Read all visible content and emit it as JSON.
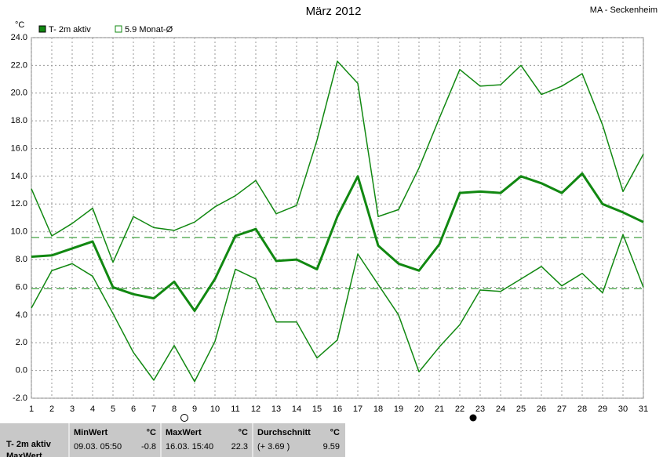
{
  "chart_data": {
    "type": "line",
    "title": "März 2012",
    "subtitle": "MA - Seckenheim",
    "y_unit": "°C",
    "x": [
      1,
      2,
      3,
      4,
      5,
      6,
      7,
      8,
      9,
      10,
      11,
      12,
      13,
      14,
      15,
      16,
      17,
      18,
      19,
      20,
      21,
      22,
      23,
      24,
      25,
      26,
      27,
      28,
      29,
      30,
      31
    ],
    "xlim": [
      1,
      31
    ],
    "xticks": [
      1,
      2,
      3,
      4,
      5,
      6,
      7,
      8,
      9,
      10,
      11,
      12,
      13,
      14,
      15,
      16,
      17,
      18,
      19,
      20,
      21,
      22,
      23,
      24,
      25,
      26,
      27,
      28,
      29,
      30,
      31
    ],
    "ylim": [
      -2,
      24
    ],
    "yticks": [
      {
        "value": 24,
        "label": "24.0"
      },
      {
        "value": 22,
        "label": "22.0"
      },
      {
        "value": 20,
        "label": "20.0"
      },
      {
        "value": 18,
        "label": "18.0"
      },
      {
        "value": 16,
        "label": "16.0"
      },
      {
        "value": 14,
        "label": "14.0"
      },
      {
        "value": 12,
        "label": "12.0"
      },
      {
        "value": 10,
        "label": "10.0"
      },
      {
        "value": 8,
        "label": "8.0"
      },
      {
        "value": 6,
        "label": "6.0"
      },
      {
        "value": 4,
        "label": "4.0"
      },
      {
        "value": 2,
        "label": "2.0"
      },
      {
        "value": 0,
        "label": "0.0"
      },
      {
        "value": -2,
        "label": "-2.0"
      }
    ],
    "grid": true,
    "series": [
      {
        "color": "#118811",
        "width": 1.5,
        "values": [
          13.1,
          9.7,
          10.6,
          11.7,
          7.8,
          11.1,
          10.3,
          10.1,
          10.7,
          11.8,
          12.6,
          13.7,
          11.3,
          11.9,
          16.6,
          22.3,
          20.7,
          11.1,
          11.6,
          14.6,
          18.2,
          21.7,
          20.5,
          20.6,
          22.0,
          19.9,
          20.5,
          21.4,
          17.7,
          12.9,
          15.6
        ]
      },
      {
        "name": "T- 2m aktiv",
        "color": "#118811",
        "width": 3,
        "values": [
          8.2,
          8.3,
          8.8,
          9.3,
          6.0,
          5.5,
          5.2,
          6.4,
          4.3,
          6.6,
          9.7,
          10.2,
          7.9,
          8.0,
          7.3,
          11.1,
          14.0,
          9.0,
          7.7,
          7.2,
          9.1,
          12.8,
          12.9,
          12.8,
          14.0,
          13.5,
          12.8,
          14.2,
          12.0,
          11.4,
          10.7
        ]
      },
      {
        "color": "#118811",
        "width": 1.5,
        "values": [
          4.5,
          7.2,
          7.7,
          6.8,
          4.1,
          1.3,
          -0.7,
          1.8,
          -0.8,
          2.1,
          7.3,
          6.6,
          3.5,
          3.5,
          0.9,
          2.2,
          8.4,
          6.2,
          4.0,
          -0.1,
          1.7,
          3.3,
          5.8,
          5.7,
          6.6,
          7.5,
          6.1,
          7.0,
          5.6,
          9.8,
          6.0
        ]
      }
    ],
    "reference_lines": [
      {
        "value": 9.59,
        "color": "#118811"
      },
      {
        "value": 5.9,
        "label": "5.9 Monat-Ø",
        "color": "#118811"
      }
    ]
  },
  "stats": {
    "series": "T- 2m aktiv",
    "next": "MaxWert",
    "columns": [
      {
        "head": "MinWert",
        "unit": "°C",
        "when": "09.03.  05:50",
        "value": "-0.8"
      },
      {
        "head": "MaxWert",
        "unit": "°C",
        "when": "16.03.  15:40",
        "value": "22.3"
      },
      {
        "head": "Durchschnitt",
        "unit": "°C",
        "when": "(+ 3.69 )",
        "value": "9.59"
      }
    ]
  }
}
